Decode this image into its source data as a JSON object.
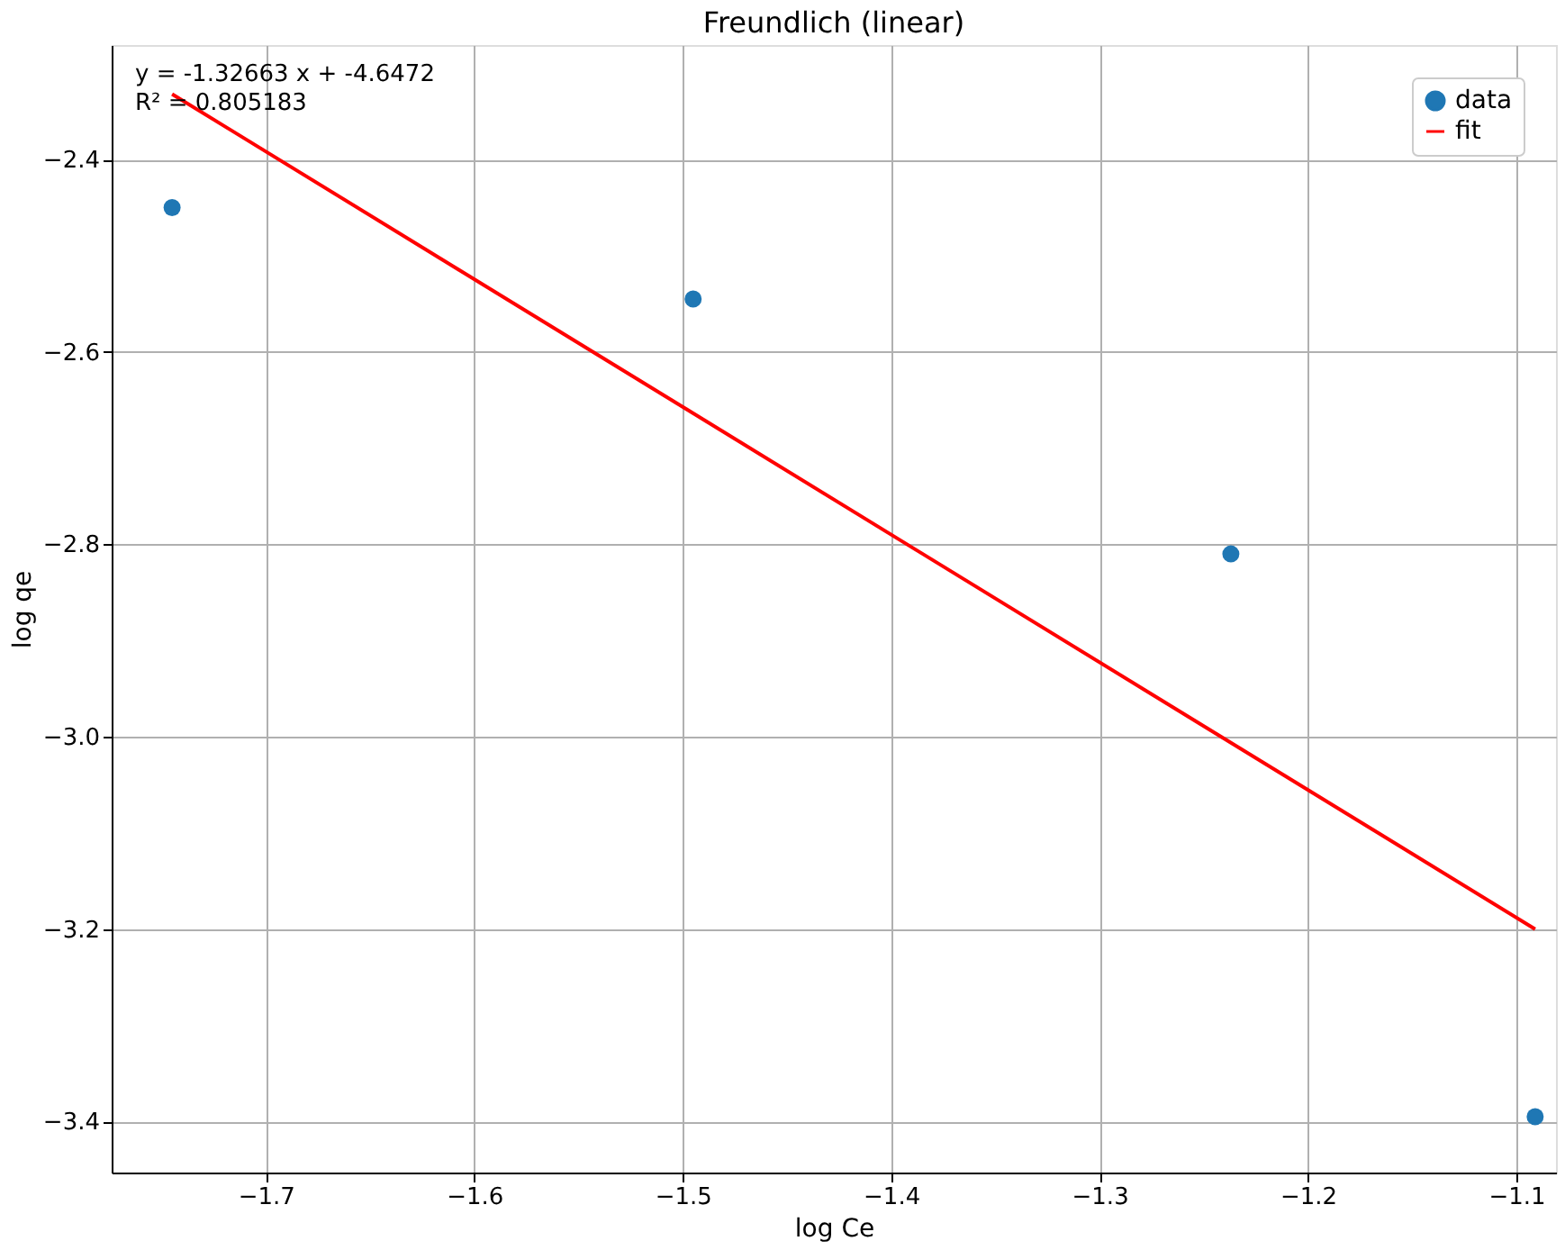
{
  "chart_data": {
    "type": "scatter",
    "title": "Freundlich (linear)",
    "xlabel": "log Ce",
    "ylabel": "log qe",
    "series": [
      {
        "name": "data",
        "color": "#1f77b4",
        "x": [
          -1.745,
          -1.495,
          -1.237,
          -1.091
        ],
        "values": [
          -2.45,
          -2.545,
          -2.81,
          -3.395
        ],
        "marker": "circle"
      },
      {
        "name": "fit",
        "type": "line",
        "color": "#ff0000",
        "x": [
          -1.745,
          -1.091
        ],
        "values": [
          -2.332,
          -3.2
        ],
        "line_style": "solid"
      }
    ],
    "xlim": [
      -1.774,
      -1.081
    ],
    "xticks": [
      {
        "value": -1.7,
        "label": "−1.7"
      },
      {
        "value": -1.6,
        "label": "−1.6"
      },
      {
        "value": -1.5,
        "label": "−1.5"
      },
      {
        "value": -1.4,
        "label": "−1.4"
      },
      {
        "value": -1.3,
        "label": "−1.3"
      },
      {
        "value": -1.2,
        "label": "−1.2"
      },
      {
        "value": -1.1,
        "label": "−1.1"
      }
    ],
    "ylim": [
      -3.453,
      -2.281
    ],
    "yticks": [
      {
        "value": -3.4,
        "label": "−3.4"
      },
      {
        "value": -3.2,
        "label": "−3.2"
      },
      {
        "value": -3.0,
        "label": "−3.0"
      },
      {
        "value": -2.8,
        "label": "−2.8"
      },
      {
        "value": -2.6,
        "label": "−2.6"
      },
      {
        "value": -2.4,
        "label": "−2.4"
      }
    ],
    "annotations": [
      "y = -1.32663 x + -4.6472",
      "R² = 0.805183"
    ],
    "grid": true,
    "legend": "top right"
  }
}
